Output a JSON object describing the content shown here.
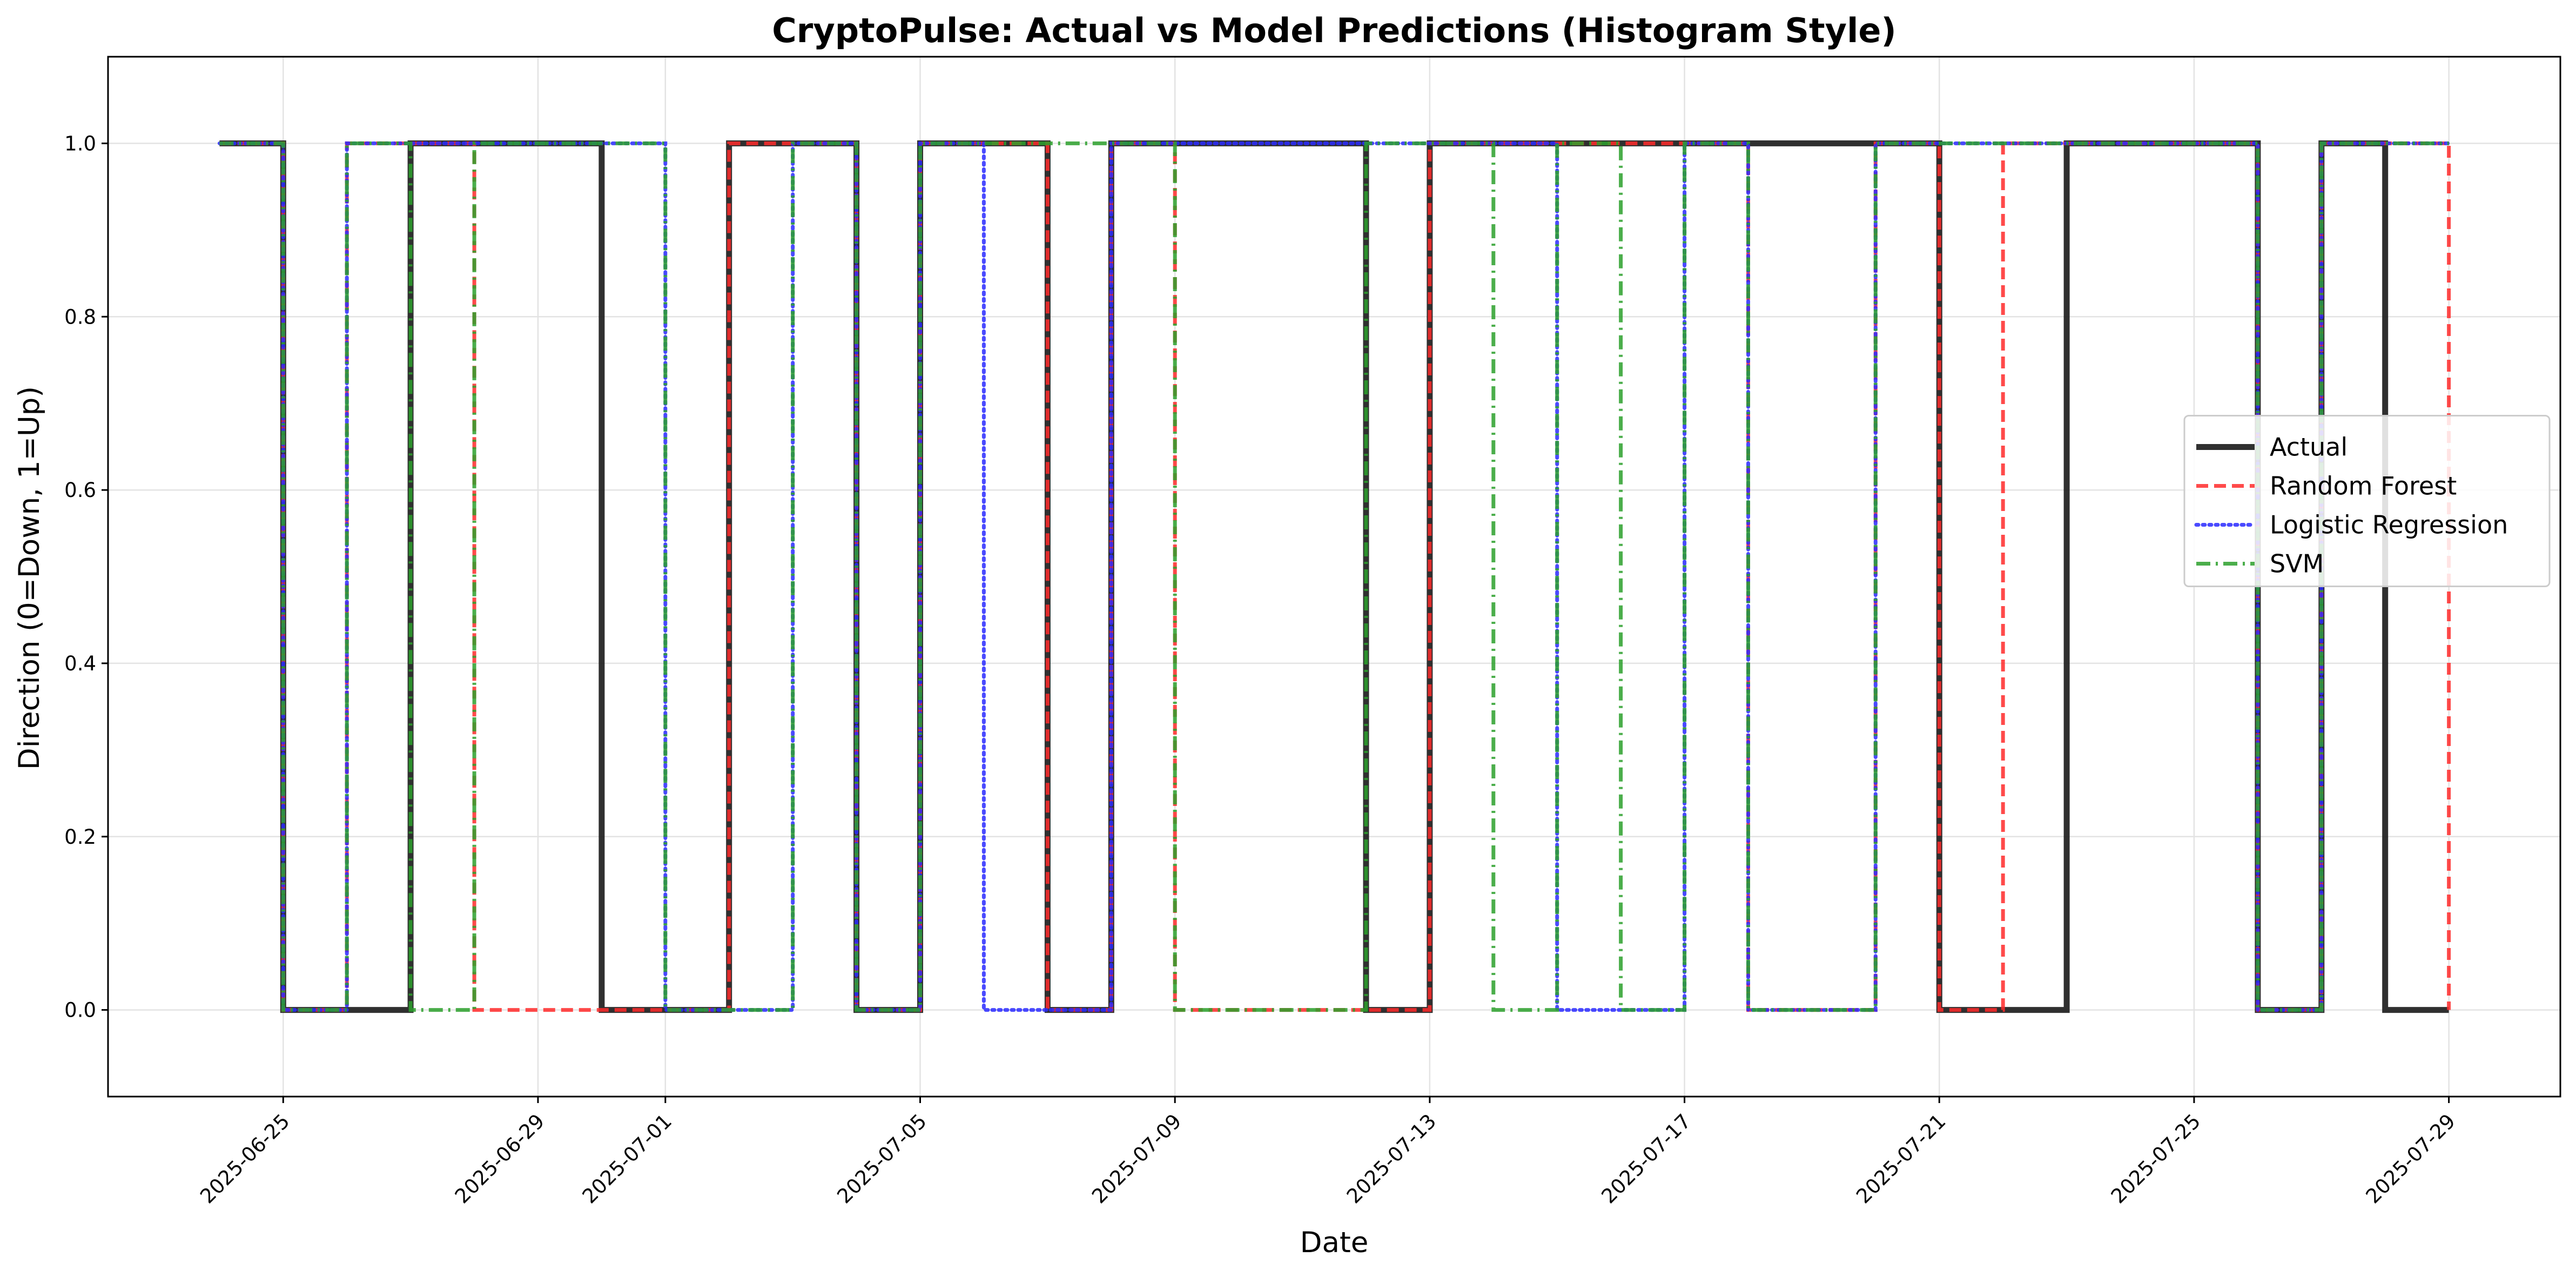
{
  "chart_data": {
    "type": "line",
    "subtype": "step",
    "title": "CryptoPulse: Actual vs Model Predictions (Histogram Style)",
    "xlabel": "Date",
    "ylabel": "Direction (0=Down, 1=Up)",
    "ylim": [
      -0.1,
      1.1
    ],
    "yticks": [
      0.0,
      0.2,
      0.4,
      0.6,
      0.8,
      1.0
    ],
    "ytick_labels": [
      "0.0",
      "0.2",
      "0.4",
      "0.6",
      "0.8",
      "1.0"
    ],
    "xticks": [
      "2025-06-25",
      "2025-06-29",
      "2025-07-01",
      "2025-07-05",
      "2025-07-09",
      "2025-07-13",
      "2025-07-17",
      "2025-07-21",
      "2025-07-25",
      "2025-07-29"
    ],
    "grid": true,
    "legend_position": "center-right",
    "x": [
      "2025-06-24",
      "2025-06-25",
      "2025-06-26",
      "2025-06-27",
      "2025-06-28",
      "2025-06-29",
      "2025-06-30",
      "2025-07-01",
      "2025-07-02",
      "2025-07-03",
      "2025-07-04",
      "2025-07-05",
      "2025-07-06",
      "2025-07-07",
      "2025-07-08",
      "2025-07-09",
      "2025-07-10",
      "2025-07-11",
      "2025-07-12",
      "2025-07-13",
      "2025-07-14",
      "2025-07-15",
      "2025-07-16",
      "2025-07-17",
      "2025-07-18",
      "2025-07-19",
      "2025-07-20",
      "2025-07-21",
      "2025-07-22",
      "2025-07-23",
      "2025-07-24",
      "2025-07-25",
      "2025-07-26",
      "2025-07-27",
      "2025-07-28",
      "2025-07-29"
    ],
    "series": [
      {
        "name": "Actual",
        "color": "#1a1a1a",
        "style": "solid",
        "values": [
          1,
          0,
          0,
          1,
          1,
          1,
          0,
          0,
          1,
          1,
          0,
          1,
          1,
          0,
          1,
          1,
          1,
          1,
          0,
          1,
          1,
          1,
          1,
          1,
          1,
          1,
          1,
          0,
          0,
          1,
          1,
          1,
          0,
          1,
          0,
          0
        ]
      },
      {
        "name": "Random Forest",
        "color": "#ff2a2a",
        "style": "dashed",
        "values": [
          1,
          0,
          1,
          1,
          0,
          0,
          0,
          0,
          1,
          1,
          0,
          1,
          1,
          0,
          1,
          0,
          0,
          0,
          0,
          1,
          1,
          1,
          1,
          1,
          0,
          0,
          1,
          0,
          1,
          1,
          1,
          1,
          0,
          1,
          1,
          0
        ]
      },
      {
        "name": "Logistic Regression",
        "color": "#2a2aff",
        "style": "dotted",
        "values": [
          1,
          0,
          1,
          1,
          1,
          1,
          1,
          0,
          0,
          1,
          0,
          1,
          0,
          0,
          1,
          1,
          1,
          1,
          1,
          1,
          1,
          0,
          0,
          1,
          0,
          0,
          1,
          1,
          1,
          1,
          1,
          1,
          0,
          1,
          1,
          1
        ]
      },
      {
        "name": "SVM",
        "color": "#2ca02c",
        "style": "dashdot",
        "values": [
          1,
          0,
          1,
          0,
          1,
          1,
          1,
          0,
          0,
          1,
          0,
          1,
          1,
          1,
          1,
          0,
          0,
          0,
          1,
          1,
          0,
          1,
          0,
          1,
          0,
          0,
          1,
          1,
          1,
          1,
          1,
          1,
          0,
          1,
          1,
          1
        ]
      }
    ]
  }
}
